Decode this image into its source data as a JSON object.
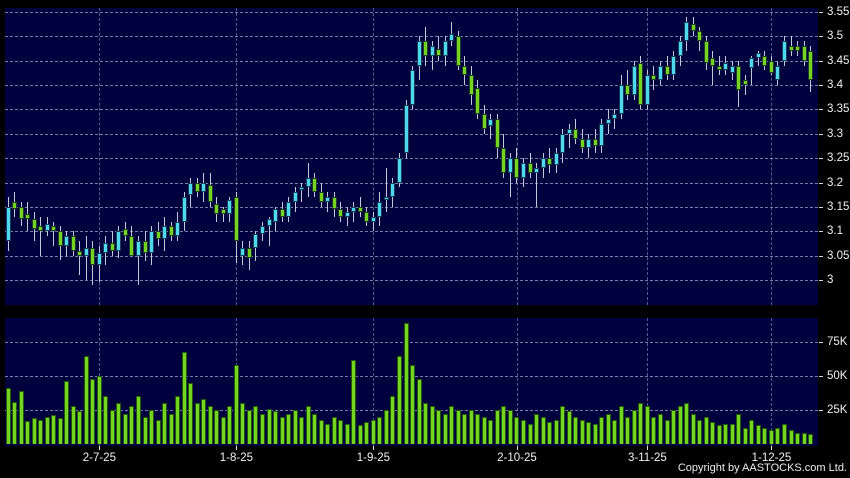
{
  "meta": {
    "copyright": "Copyright by AASTOCKS.com Ltd."
  },
  "colors": {
    "background": "#000000",
    "panel": "#00003e",
    "grid": "#9ea8c4",
    "candle_up": "#4fd9ef",
    "candle_down": "#74d41f",
    "wick": "#c4c9da",
    "volume_bar": "#74d41f",
    "axis_text": "#f2f2f2"
  },
  "price_axis": {
    "ticks": [
      "3.55",
      "3.5",
      "3.45",
      "3.4",
      "3.35",
      "3.3",
      "3.25",
      "3.2",
      "3.15",
      "3.1",
      "3.05",
      "3"
    ]
  },
  "volume_axis": {
    "ticks": [
      "75K",
      "50K",
      "25K"
    ]
  },
  "x_axis": {
    "dates": [
      "2-7-25",
      "1-8-25",
      "1-9-25",
      "2-10-25",
      "3-11-25",
      "1-12-25"
    ],
    "date_indices": [
      14,
      35,
      56,
      78,
      98,
      117
    ]
  },
  "chart_data": {
    "type": "candlestick",
    "panels": [
      "price-candlestick",
      "volume-bars"
    ],
    "price_range_ticks": [
      3.0,
      3.05,
      3.1,
      3.15,
      3.2,
      3.25,
      3.3,
      3.35,
      3.4,
      3.45,
      3.5,
      3.55
    ],
    "ylim_price": [
      2.95,
      3.56
    ],
    "ylim_volume_k": [
      0,
      95
    ],
    "legend": "none",
    "grid": "dashed",
    "x_dates": [
      "2-7-25",
      "1-8-25",
      "1-9-25",
      "2-10-25",
      "3-11-25",
      "1-12-25"
    ],
    "x_date_indices": [
      14,
      35,
      56,
      78,
      98,
      117
    ],
    "candles_ohlc": [
      [
        3.08,
        3.17,
        3.06,
        3.15
      ],
      [
        3.16,
        3.18,
        3.13,
        3.145
      ],
      [
        3.15,
        3.16,
        3.11,
        3.125
      ],
      [
        3.135,
        3.16,
        3.1,
        3.125
      ],
      [
        3.125,
        3.14,
        3.08,
        3.105
      ],
      [
        3.11,
        3.13,
        3.05,
        3.1
      ],
      [
        3.1,
        3.13,
        3.09,
        3.115
      ],
      [
        3.11,
        3.12,
        3.07,
        3.1
      ],
      [
        3.1,
        3.11,
        3.04,
        3.07
      ],
      [
        3.07,
        3.1,
        3.05,
        3.09
      ],
      [
        3.09,
        3.1,
        3.05,
        3.06
      ],
      [
        3.06,
        3.08,
        3.01,
        3.05
      ],
      [
        3.05,
        3.09,
        3.0,
        3.065
      ],
      [
        3.065,
        3.08,
        2.99,
        3.03
      ],
      [
        3.03,
        3.07,
        2.995,
        3.055
      ],
      [
        3.055,
        3.09,
        3.03,
        3.075
      ],
      [
        3.075,
        3.1,
        3.05,
        3.06
      ],
      [
        3.06,
        3.11,
        3.045,
        3.1
      ],
      [
        3.105,
        3.12,
        3.08,
        3.09
      ],
      [
        3.09,
        3.11,
        3.05,
        3.05
      ],
      [
        3.05,
        3.09,
        2.99,
        3.08
      ],
      [
        3.08,
        3.1,
        3.04,
        3.055
      ],
      [
        3.055,
        3.11,
        3.03,
        3.1
      ],
      [
        3.1,
        3.12,
        3.07,
        3.085
      ],
      [
        3.085,
        3.13,
        3.06,
        3.11
      ],
      [
        3.11,
        3.12,
        3.08,
        3.09
      ],
      [
        3.09,
        3.14,
        3.08,
        3.12
      ],
      [
        3.12,
        3.18,
        3.1,
        3.17
      ],
      [
        3.175,
        3.21,
        3.15,
        3.2
      ],
      [
        3.2,
        3.21,
        3.17,
        3.18
      ],
      [
        3.18,
        3.22,
        3.16,
        3.2
      ],
      [
        3.195,
        3.22,
        3.15,
        3.16
      ],
      [
        3.155,
        3.17,
        3.12,
        3.135
      ],
      [
        3.145,
        3.15,
        3.12,
        3.135
      ],
      [
        3.135,
        3.17,
        3.12,
        3.165
      ],
      [
        3.17,
        3.18,
        3.035,
        3.08
      ],
      [
        3.05,
        3.08,
        3.03,
        3.065
      ],
      [
        3.065,
        3.08,
        3.02,
        3.045
      ],
      [
        3.065,
        3.1,
        3.04,
        3.095
      ],
      [
        3.095,
        3.12,
        3.08,
        3.11
      ],
      [
        3.11,
        3.13,
        3.07,
        3.125
      ],
      [
        3.12,
        3.15,
        3.1,
        3.145
      ],
      [
        3.145,
        3.16,
        3.12,
        3.13
      ],
      [
        3.13,
        3.17,
        3.12,
        3.16
      ],
      [
        3.16,
        3.19,
        3.14,
        3.18
      ],
      [
        3.185,
        3.2,
        3.16,
        3.19
      ],
      [
        3.19,
        3.24,
        3.17,
        3.21
      ],
      [
        3.21,
        3.22,
        3.17,
        3.18
      ],
      [
        3.18,
        3.2,
        3.15,
        3.16
      ],
      [
        3.16,
        3.18,
        3.14,
        3.17
      ],
      [
        3.17,
        3.18,
        3.13,
        3.145
      ],
      [
        3.145,
        3.16,
        3.12,
        3.13
      ],
      [
        3.13,
        3.15,
        3.11,
        3.14
      ],
      [
        3.14,
        3.16,
        3.12,
        3.15
      ],
      [
        3.15,
        3.17,
        3.13,
        3.14
      ],
      [
        3.14,
        3.15,
        3.11,
        3.12
      ],
      [
        3.12,
        3.14,
        3.1,
        3.13
      ],
      [
        3.13,
        3.18,
        3.11,
        3.16
      ],
      [
        3.165,
        3.23,
        3.14,
        3.17
      ],
      [
        3.17,
        3.21,
        3.15,
        3.2
      ],
      [
        3.2,
        3.26,
        3.19,
        3.25
      ],
      [
        3.26,
        3.37,
        3.25,
        3.36
      ],
      [
        3.36,
        3.44,
        3.35,
        3.43
      ],
      [
        3.44,
        3.5,
        3.41,
        3.49
      ],
      [
        3.49,
        3.52,
        3.44,
        3.46
      ],
      [
        3.46,
        3.49,
        3.43,
        3.48
      ],
      [
        3.475,
        3.5,
        3.45,
        3.46
      ],
      [
        3.46,
        3.5,
        3.44,
        3.49
      ],
      [
        3.49,
        3.53,
        3.48,
        3.505
      ],
      [
        3.5,
        3.51,
        3.43,
        3.44
      ],
      [
        3.44,
        3.46,
        3.4,
        3.42
      ],
      [
        3.42,
        3.44,
        3.36,
        3.38
      ],
      [
        3.395,
        3.41,
        3.33,
        3.34
      ],
      [
        3.34,
        3.36,
        3.3,
        3.31
      ],
      [
        3.315,
        3.34,
        3.29,
        3.33
      ],
      [
        3.33,
        3.34,
        3.25,
        3.27
      ],
      [
        3.27,
        3.3,
        3.21,
        3.22
      ],
      [
        3.22,
        3.26,
        3.17,
        3.25
      ],
      [
        3.25,
        3.27,
        3.2,
        3.21
      ],
      [
        3.21,
        3.25,
        3.19,
        3.24
      ],
      [
        3.24,
        3.26,
        3.21,
        3.22
      ],
      [
        3.22,
        3.24,
        3.15,
        3.23
      ],
      [
        3.23,
        3.26,
        3.21,
        3.25
      ],
      [
        3.25,
        3.27,
        3.22,
        3.235
      ],
      [
        3.235,
        3.27,
        3.22,
        3.26
      ],
      [
        3.26,
        3.31,
        3.24,
        3.3
      ],
      [
        3.3,
        3.32,
        3.27,
        3.31
      ],
      [
        3.31,
        3.33,
        3.28,
        3.29
      ],
      [
        3.29,
        3.31,
        3.26,
        3.27
      ],
      [
        3.27,
        3.3,
        3.25,
        3.29
      ],
      [
        3.29,
        3.31,
        3.26,
        3.275
      ],
      [
        3.275,
        3.33,
        3.26,
        3.32
      ],
      [
        3.32,
        3.35,
        3.3,
        3.33
      ],
      [
        3.33,
        3.35,
        3.31,
        3.34
      ],
      [
        3.34,
        3.42,
        3.33,
        3.4
      ],
      [
        3.4,
        3.43,
        3.37,
        3.38
      ],
      [
        3.38,
        3.45,
        3.37,
        3.44
      ],
      [
        3.445,
        3.46,
        3.35,
        3.36
      ],
      [
        3.36,
        3.43,
        3.35,
        3.42
      ],
      [
        3.42,
        3.44,
        3.39,
        3.41
      ],
      [
        3.41,
        3.45,
        3.4,
        3.44
      ],
      [
        3.44,
        3.46,
        3.41,
        3.42
      ],
      [
        3.42,
        3.47,
        3.41,
        3.46
      ],
      [
        3.46,
        3.5,
        3.44,
        3.49
      ],
      [
        3.49,
        3.54,
        3.47,
        3.53
      ],
      [
        3.525,
        3.54,
        3.5,
        3.51
      ],
      [
        3.51,
        3.52,
        3.47,
        3.49
      ],
      [
        3.49,
        3.5,
        3.43,
        3.445
      ],
      [
        3.455,
        3.47,
        3.4,
        3.44
      ],
      [
        3.44,
        3.46,
        3.42,
        3.43
      ],
      [
        3.43,
        3.46,
        3.42,
        3.445
      ],
      [
        3.425,
        3.45,
        3.41,
        3.44
      ],
      [
        3.44,
        3.45,
        3.355,
        3.39
      ],
      [
        3.41,
        3.42,
        3.38,
        3.4
      ],
      [
        3.435,
        3.46,
        3.4,
        3.455
      ],
      [
        3.455,
        3.47,
        3.44,
        3.465
      ],
      [
        3.46,
        3.47,
        3.43,
        3.44
      ],
      [
        3.45,
        3.46,
        3.42,
        3.425
      ],
      [
        3.41,
        3.45,
        3.4,
        3.44
      ],
      [
        3.45,
        3.5,
        3.44,
        3.49
      ],
      [
        3.48,
        3.5,
        3.46,
        3.47
      ],
      [
        3.48,
        3.49,
        3.46,
        3.47
      ],
      [
        3.48,
        3.49,
        3.44,
        3.45
      ],
      [
        3.47,
        3.48,
        3.385,
        3.41
      ]
    ],
    "volumes_k": [
      41,
      31,
      39,
      17,
      19,
      18,
      20,
      21,
      19,
      46,
      28,
      24,
      65,
      48,
      50,
      35,
      25,
      30,
      22,
      28,
      35,
      20,
      25,
      18,
      30,
      22,
      35,
      68,
      45,
      30,
      33,
      28,
      25,
      20,
      28,
      58,
      30,
      25,
      28,
      22,
      26,
      24,
      20,
      22,
      25,
      20,
      28,
      22,
      18,
      15,
      20,
      18,
      15,
      62,
      14,
      16,
      18,
      20,
      25,
      35,
      65,
      89,
      58,
      48,
      30,
      28,
      25,
      22,
      28,
      25,
      22,
      25,
      22,
      20,
      18,
      25,
      28,
      25,
      20,
      18,
      15,
      22,
      20,
      16,
      18,
      28,
      24,
      20,
      18,
      16,
      15,
      20,
      22,
      18,
      28,
      20,
      25,
      30,
      28,
      20,
      22,
      18,
      25,
      28,
      30,
      22,
      18,
      20,
      16,
      14,
      15,
      15,
      22,
      12,
      18,
      14,
      12,
      10,
      12,
      15,
      10,
      8,
      8,
      7
    ]
  }
}
